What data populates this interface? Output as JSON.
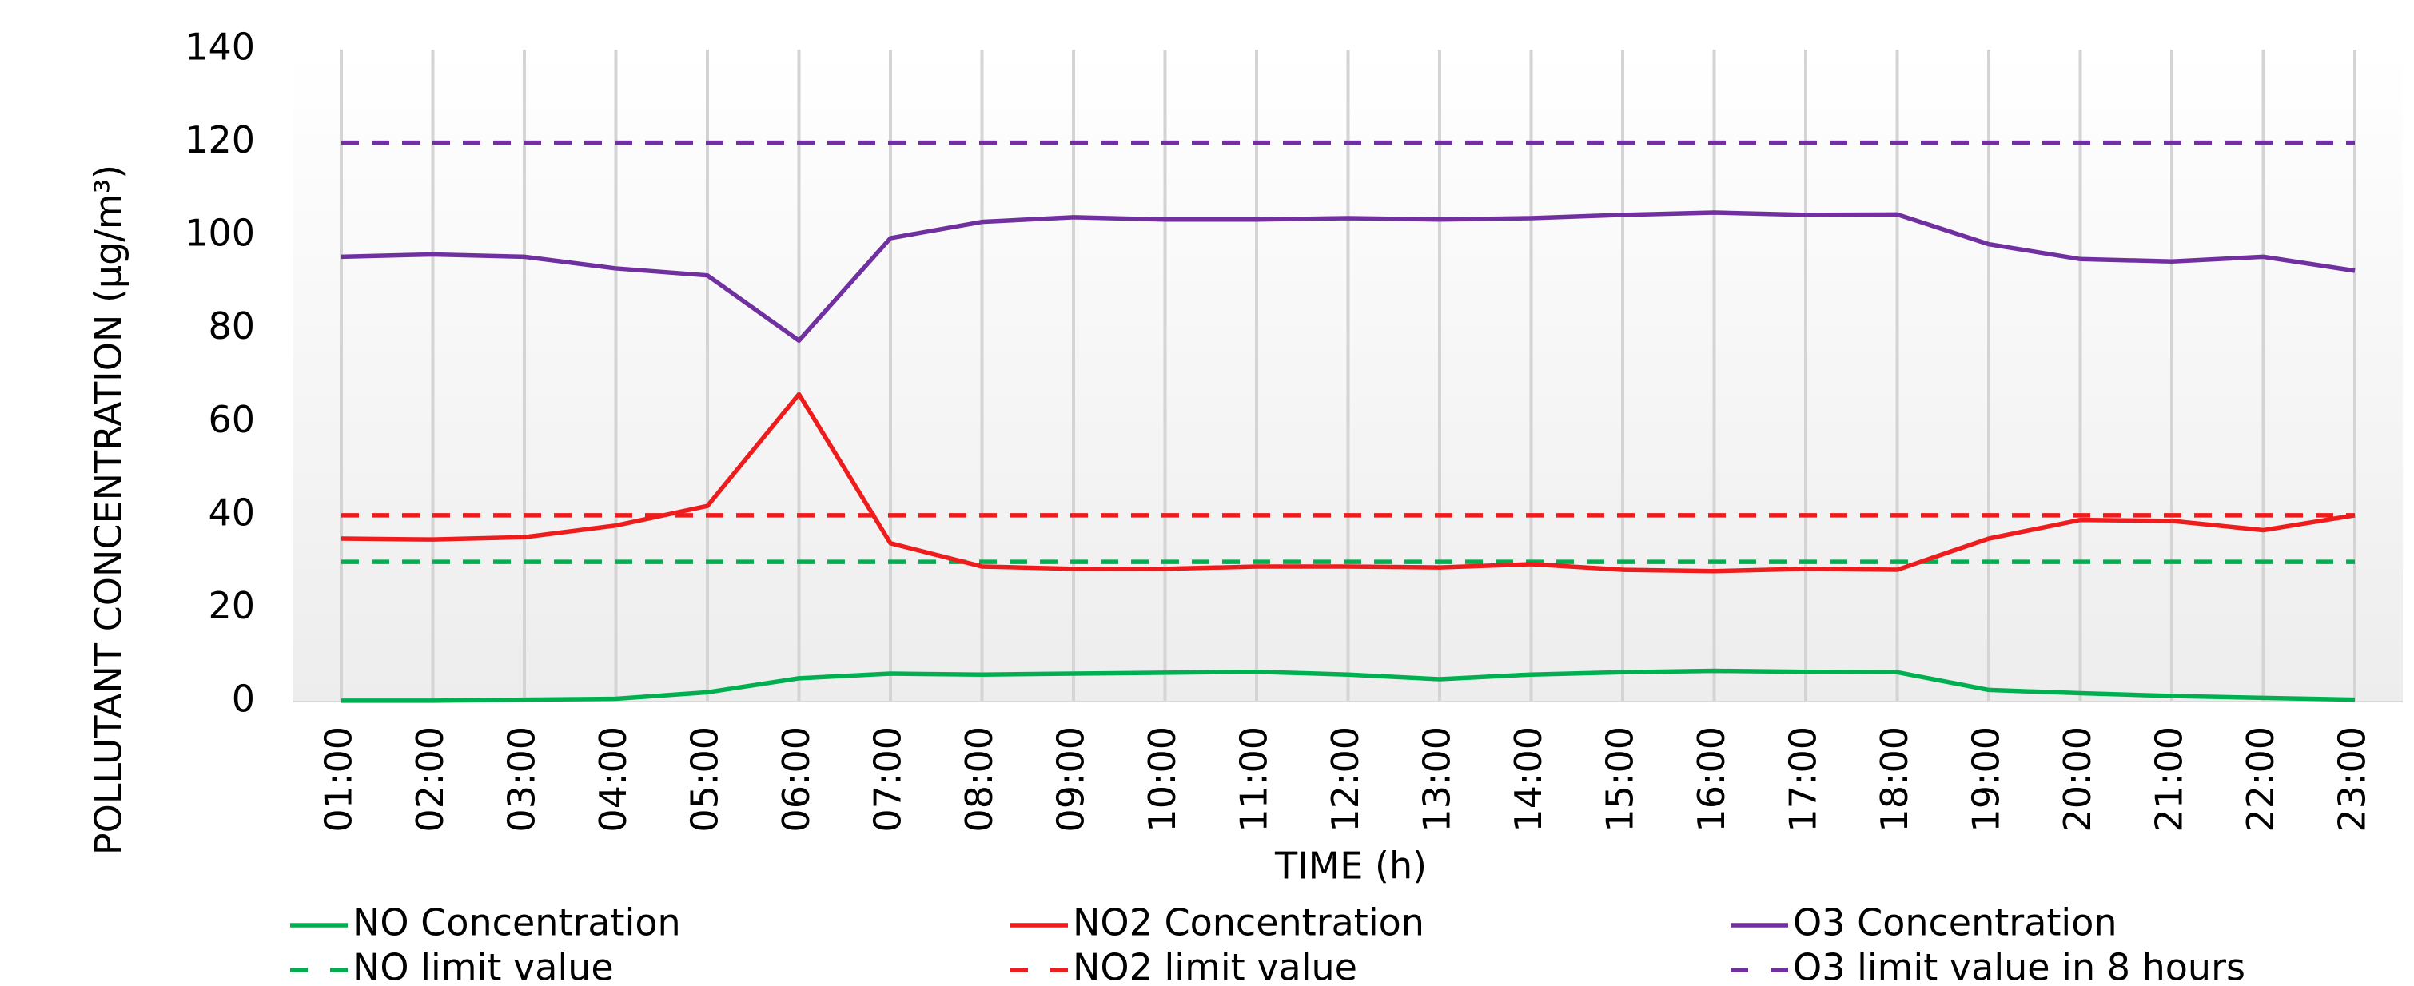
{
  "chart_data": {
    "type": "line",
    "x_label": "TIME (h)",
    "y_label": "POLLUTANT CONCENTRATION (μg/m³)",
    "categories": [
      "01:00",
      "02:00",
      "03:00",
      "04:00",
      "05:00",
      "06:00",
      "07:00",
      "08:00",
      "09:00",
      "10:00",
      "11:00",
      "12:00",
      "13:00",
      "14:00",
      "15:00",
      "16:00",
      "17:00",
      "18:00",
      "19:00",
      "20:00",
      "21:00",
      "22:00",
      "23:00"
    ],
    "ylim": [
      0,
      140
    ],
    "yticks": [
      0,
      20,
      40,
      60,
      80,
      100,
      120,
      140
    ],
    "grid": true,
    "legend": "bottom",
    "series": [
      {
        "name": "NO Concentration",
        "color": "#00b050",
        "dashed": false,
        "values": [
          0.2,
          0.2,
          0.4,
          0.6,
          2,
          5,
          6,
          5.8,
          6,
          6.2,
          6.4,
          5.8,
          4.8,
          5.8,
          6.3,
          6.6,
          6.4,
          6.3,
          2.5,
          1.8,
          1.2,
          0.8,
          0.4
        ]
      },
      {
        "name": "NO2 Concentration",
        "color": "#ee1c1c",
        "dashed": false,
        "values": [
          35,
          34.8,
          35.3,
          37.8,
          42,
          66,
          34,
          29,
          28.5,
          28.5,
          29,
          29,
          28.8,
          29.5,
          28.3,
          28,
          28.5,
          28.3,
          35,
          39,
          38.8,
          36.8,
          40
        ]
      },
      {
        "name": "O3 Concentration",
        "color": "#7030a0",
        "dashed": false,
        "values": [
          95.5,
          96,
          95.5,
          93,
          91.5,
          77.5,
          99.5,
          103,
          104,
          103.5,
          103.5,
          103.8,
          103.5,
          103.8,
          104.5,
          105,
          104.5,
          104.6,
          98.2,
          95,
          94.5,
          95.5,
          92.5
        ]
      },
      {
        "name": "NO limit value",
        "color": "#00b050",
        "dashed": true,
        "values": [
          30,
          30,
          30,
          30,
          30,
          30,
          30,
          30,
          30,
          30,
          30,
          30,
          30,
          30,
          30,
          30,
          30,
          30,
          30,
          30,
          30,
          30,
          30
        ]
      },
      {
        "name": "NO2 limit value",
        "color": "#ee1c1c",
        "dashed": true,
        "values": [
          40,
          40,
          40,
          40,
          40,
          40,
          40,
          40,
          40,
          40,
          40,
          40,
          40,
          40,
          40,
          40,
          40,
          40,
          40,
          40,
          40,
          40,
          40
        ]
      },
      {
        "name": "O3 limit value in 8 hours",
        "color": "#7030a0",
        "dashed": true,
        "values": [
          120,
          120,
          120,
          120,
          120,
          120,
          120,
          120,
          120,
          120,
          120,
          120,
          120,
          120,
          120,
          120,
          120,
          120,
          120,
          120,
          120,
          120,
          120
        ]
      }
    ]
  }
}
